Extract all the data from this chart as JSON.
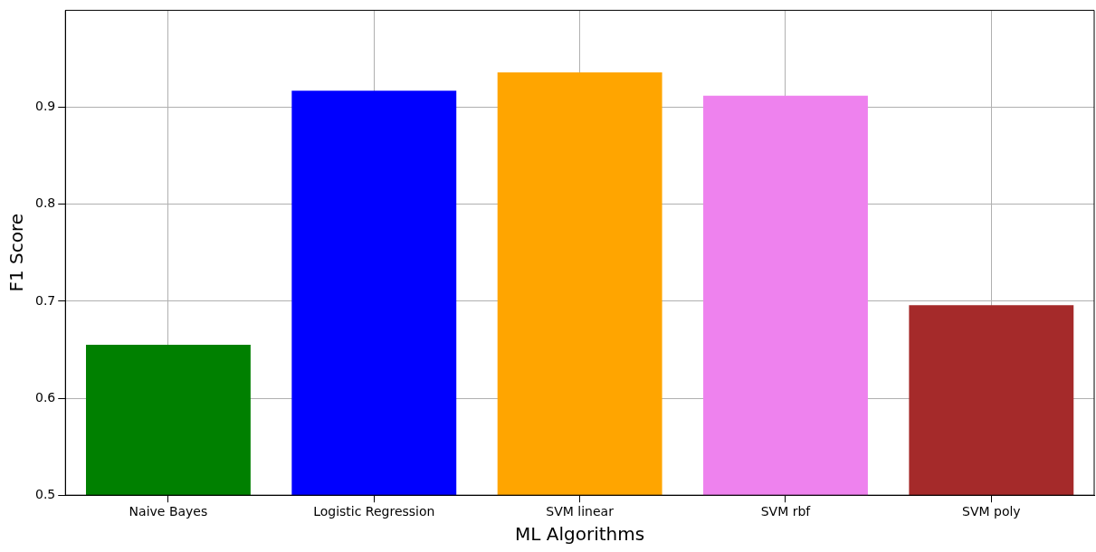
{
  "chart_data": {
    "type": "bar",
    "xlabel": "ML Algorithms",
    "ylabel": "F1 Score",
    "categories": [
      "Naive Bayes",
      "Logistic Regression",
      "SVM linear",
      "SVM rbf",
      "SVM poly"
    ],
    "values": [
      0.655,
      0.917,
      0.936,
      0.912,
      0.696
    ],
    "colors": [
      "#008000",
      "#0000ff",
      "#ffa500",
      "#ee82ee",
      "#a52a2a"
    ],
    "ylim": [
      0.5,
      1.0
    ],
    "yticks": [
      0.5,
      0.6,
      0.7,
      0.8,
      0.9
    ],
    "grid": true,
    "legend": false
  }
}
